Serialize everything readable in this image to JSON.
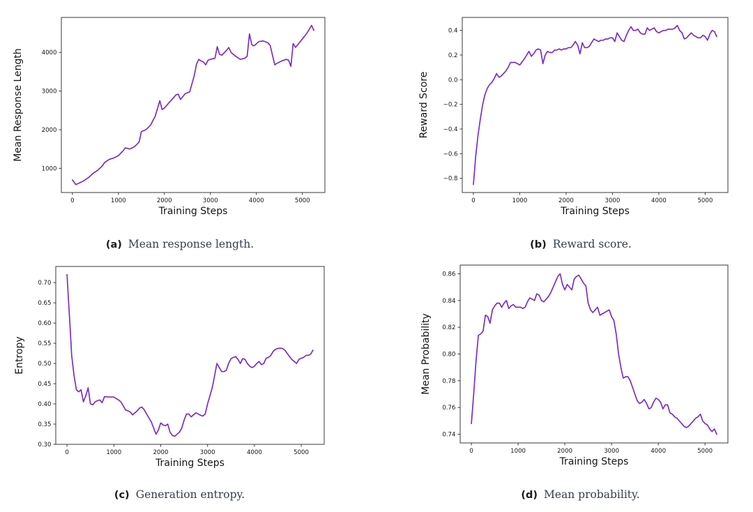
{
  "page": {
    "background": "#ffffff"
  },
  "chart_data": [
    {
      "id": "a",
      "type": "line",
      "caption_marker": "(a)",
      "caption": "Mean response length.",
      "xlabel": "Training Steps",
      "ylabel": "Mean Response Length",
      "line_color": "#7b2fc4",
      "axis_color": "#3a3a3a",
      "legend": "none",
      "grid": false,
      "xlim": [
        -240,
        5490
      ],
      "ylim": [
        374,
        4906
      ],
      "xticks": [
        0,
        1000,
        2000,
        3000,
        4000,
        5000
      ],
      "xtick_labels": [
        "0",
        "1000",
        "2000",
        "3000",
        "4000",
        "5000"
      ],
      "yticks": [
        1000,
        2000,
        3000,
        4000
      ],
      "ytick_labels": [
        "1000",
        "2000",
        "3000",
        "4000"
      ],
      "x": [
        0,
        75,
        150,
        250,
        350,
        450,
        550,
        650,
        700,
        800,
        900,
        1000,
        1100,
        1150,
        1250,
        1350,
        1450,
        1500,
        1600,
        1700,
        1800,
        1900,
        1950,
        2000,
        2100,
        2200,
        2250,
        2300,
        2350,
        2450,
        2550,
        2650,
        2700,
        2750,
        2800,
        2850,
        2900,
        2950,
        3000,
        3100,
        3150,
        3200,
        3250,
        3350,
        3400,
        3450,
        3550,
        3650,
        3750,
        3800,
        3850,
        3900,
        3950,
        4050,
        4150,
        4250,
        4300,
        4400,
        4450,
        4550,
        4650,
        4700,
        4750,
        4800,
        4850,
        4900,
        5000,
        5100,
        5200,
        5250
      ],
      "y": [
        700,
        580,
        620,
        680,
        760,
        870,
        950,
        1060,
        1150,
        1230,
        1270,
        1330,
        1450,
        1530,
        1500,
        1560,
        1680,
        1950,
        2000,
        2120,
        2350,
        2750,
        2520,
        2560,
        2700,
        2830,
        2900,
        2920,
        2780,
        2930,
        2980,
        3400,
        3700,
        3820,
        3780,
        3750,
        3680,
        3800,
        3820,
        3850,
        4150,
        3950,
        3930,
        4050,
        4130,
        4000,
        3900,
        3820,
        3850,
        3900,
        4480,
        4200,
        4170,
        4280,
        4300,
        4250,
        4180,
        3680,
        3720,
        3780,
        3820,
        3800,
        3640,
        4230,
        4130,
        4200,
        4350,
        4500,
        4700,
        4570
      ]
    },
    {
      "id": "b",
      "type": "line",
      "caption_marker": "(b)",
      "caption": "Reward score.",
      "xlabel": "Training Steps",
      "ylabel": "Reward Score",
      "line_color": "#7b2fc4",
      "axis_color": "#3a3a3a",
      "legend": "none",
      "grid": false,
      "xlim": [
        -240,
        5490
      ],
      "ylim": [
        -0.915,
        0.505
      ],
      "xticks": [
        0,
        1000,
        2000,
        3000,
        4000,
        5000
      ],
      "xtick_labels": [
        "0",
        "1000",
        "2000",
        "3000",
        "4000",
        "5000"
      ],
      "yticks": [
        0.4,
        0.2,
        0.0,
        -0.2,
        -0.4,
        -0.6,
        -0.8
      ],
      "ytick_labels": [
        "0.4",
        "0.2",
        "0.0",
        "−0.2",
        "−0.4",
        "−0.6",
        "−0.8"
      ],
      "x": [
        0,
        50,
        100,
        150,
        200,
        250,
        300,
        350,
        400,
        450,
        500,
        550,
        600,
        650,
        700,
        750,
        800,
        850,
        900,
        950,
        1000,
        1100,
        1150,
        1200,
        1250,
        1300,
        1350,
        1400,
        1450,
        1500,
        1550,
        1600,
        1650,
        1700,
        1750,
        1800,
        1850,
        1900,
        1950,
        2000,
        2050,
        2100,
        2150,
        2200,
        2250,
        2300,
        2350,
        2400,
        2450,
        2500,
        2550,
        2600,
        2650,
        2700,
        2750,
        2800,
        2850,
        2900,
        2950,
        3000,
        3050,
        3100,
        3150,
        3200,
        3250,
        3300,
        3350,
        3400,
        3450,
        3500,
        3550,
        3600,
        3650,
        3700,
        3750,
        3800,
        3850,
        3900,
        3950,
        4000,
        4050,
        4100,
        4150,
        4200,
        4250,
        4300,
        4350,
        4400,
        4450,
        4500,
        4550,
        4600,
        4650,
        4700,
        4750,
        4800,
        4850,
        4900,
        4950,
        5000,
        5050,
        5100,
        5150,
        5200,
        5250
      ],
      "y": [
        -0.85,
        -0.62,
        -0.45,
        -0.32,
        -0.2,
        -0.12,
        -0.07,
        -0.04,
        -0.02,
        0.01,
        0.05,
        0.02,
        0.03,
        0.05,
        0.07,
        0.1,
        0.14,
        0.14,
        0.14,
        0.13,
        0.12,
        0.17,
        0.2,
        0.23,
        0.19,
        0.21,
        0.24,
        0.25,
        0.24,
        0.13,
        0.2,
        0.23,
        0.22,
        0.22,
        0.24,
        0.24,
        0.25,
        0.24,
        0.25,
        0.25,
        0.26,
        0.26,
        0.28,
        0.31,
        0.28,
        0.21,
        0.3,
        0.26,
        0.26,
        0.27,
        0.3,
        0.33,
        0.32,
        0.31,
        0.32,
        0.32,
        0.33,
        0.33,
        0.34,
        0.34,
        0.31,
        0.38,
        0.35,
        0.32,
        0.31,
        0.36,
        0.4,
        0.43,
        0.4,
        0.4,
        0.41,
        0.38,
        0.37,
        0.37,
        0.42,
        0.4,
        0.41,
        0.42,
        0.39,
        0.38,
        0.39,
        0.4,
        0.4,
        0.41,
        0.41,
        0.41,
        0.42,
        0.44,
        0.4,
        0.38,
        0.33,
        0.34,
        0.36,
        0.38,
        0.36,
        0.35,
        0.34,
        0.34,
        0.36,
        0.35,
        0.32,
        0.37,
        0.4,
        0.39,
        0.35
      ]
    },
    {
      "id": "c",
      "type": "line",
      "caption_marker": "(c)",
      "caption": "Generation entropy.",
      "xlabel": "Training Steps",
      "ylabel": "Entropy",
      "line_color": "#7b2fc4",
      "axis_color": "#3a3a3a",
      "legend": "none",
      "grid": false,
      "xlim": [
        -240,
        5490
      ],
      "ylim": [
        0.3,
        0.74
      ],
      "xticks": [
        0,
        1000,
        2000,
        3000,
        4000,
        5000
      ],
      "xtick_labels": [
        "0",
        "1000",
        "2000",
        "3000",
        "4000",
        "5000"
      ],
      "yticks": [
        0.7,
        0.65,
        0.6,
        0.55,
        0.5,
        0.45,
        0.4,
        0.35,
        0.3
      ],
      "ytick_labels": [
        "0.70",
        "0.65",
        "0.60",
        "0.55",
        "0.50",
        "0.45",
        "0.40",
        "0.35",
        "0.30"
      ],
      "x": [
        0,
        30,
        60,
        100,
        150,
        200,
        250,
        300,
        350,
        400,
        450,
        500,
        550,
        600,
        650,
        700,
        750,
        800,
        900,
        1000,
        1050,
        1100,
        1150,
        1200,
        1250,
        1300,
        1350,
        1400,
        1450,
        1500,
        1550,
        1600,
        1650,
        1700,
        1750,
        1800,
        1850,
        1900,
        1950,
        2000,
        2050,
        2100,
        2150,
        2200,
        2250,
        2300,
        2350,
        2400,
        2450,
        2500,
        2550,
        2600,
        2650,
        2700,
        2750,
        2800,
        2850,
        2900,
        2950,
        3000,
        3050,
        3100,
        3150,
        3200,
        3250,
        3300,
        3350,
        3400,
        3450,
        3500,
        3550,
        3600,
        3650,
        3700,
        3750,
        3800,
        3850,
        3900,
        3950,
        4000,
        4050,
        4100,
        4150,
        4200,
        4250,
        4300,
        4350,
        4400,
        4450,
        4500,
        4550,
        4600,
        4650,
        4700,
        4750,
        4800,
        4850,
        4900,
        4950,
        5000,
        5050,
        5100,
        5150,
        5200,
        5250
      ],
      "y": [
        0.72,
        0.66,
        0.6,
        0.52,
        0.47,
        0.435,
        0.43,
        0.435,
        0.405,
        0.42,
        0.44,
        0.4,
        0.398,
        0.405,
        0.408,
        0.41,
        0.403,
        0.418,
        0.417,
        0.417,
        0.413,
        0.41,
        0.405,
        0.395,
        0.385,
        0.383,
        0.38,
        0.373,
        0.378,
        0.383,
        0.39,
        0.392,
        0.385,
        0.375,
        0.365,
        0.355,
        0.34,
        0.325,
        0.335,
        0.353,
        0.348,
        0.346,
        0.35,
        0.33,
        0.322,
        0.32,
        0.325,
        0.33,
        0.34,
        0.36,
        0.375,
        0.375,
        0.368,
        0.373,
        0.378,
        0.375,
        0.372,
        0.37,
        0.375,
        0.4,
        0.42,
        0.44,
        0.47,
        0.5,
        0.49,
        0.48,
        0.48,
        0.483,
        0.5,
        0.512,
        0.515,
        0.517,
        0.51,
        0.5,
        0.512,
        0.51,
        0.5,
        0.493,
        0.49,
        0.493,
        0.5,
        0.505,
        0.497,
        0.5,
        0.513,
        0.515,
        0.52,
        0.53,
        0.535,
        0.537,
        0.538,
        0.537,
        0.533,
        0.525,
        0.517,
        0.51,
        0.505,
        0.5,
        0.51,
        0.513,
        0.515,
        0.52,
        0.52,
        0.523,
        0.533
      ]
    },
    {
      "id": "d",
      "type": "line",
      "caption_marker": "(d)",
      "caption": "Mean probability.",
      "xlabel": "Training Steps",
      "ylabel": "Mean Probability",
      "line_color": "#7b2fc4",
      "axis_color": "#3a3a3a",
      "legend": "none",
      "grid": false,
      "xlim": [
        -240,
        5490
      ],
      "ylim": [
        0.7335,
        0.8665
      ],
      "xticks": [
        0,
        1000,
        2000,
        3000,
        4000,
        5000
      ],
      "xtick_labels": [
        "0",
        "1000",
        "2000",
        "3000",
        "4000",
        "5000"
      ],
      "yticks": [
        0.86,
        0.84,
        0.82,
        0.8,
        0.78,
        0.76,
        0.74
      ],
      "ytick_labels": [
        "0.86",
        "0.84",
        "0.82",
        "0.80",
        "0.78",
        "0.76",
        "0.74"
      ],
      "x": [
        0,
        50,
        100,
        150,
        200,
        250,
        300,
        350,
        400,
        450,
        500,
        550,
        600,
        650,
        700,
        750,
        800,
        850,
        900,
        950,
        1000,
        1050,
        1100,
        1150,
        1200,
        1250,
        1300,
        1350,
        1400,
        1450,
        1500,
        1550,
        1600,
        1650,
        1700,
        1750,
        1800,
        1850,
        1900,
        1950,
        2000,
        2050,
        2100,
        2150,
        2200,
        2250,
        2300,
        2350,
        2400,
        2450,
        2500,
        2550,
        2600,
        2650,
        2700,
        2750,
        2800,
        2850,
        2900,
        2950,
        3000,
        3050,
        3100,
        3150,
        3200,
        3250,
        3300,
        3350,
        3400,
        3450,
        3500,
        3550,
        3600,
        3650,
        3700,
        3750,
        3800,
        3850,
        3900,
        3950,
        4000,
        4050,
        4100,
        4150,
        4200,
        4250,
        4300,
        4350,
        4400,
        4450,
        4500,
        4550,
        4600,
        4650,
        4700,
        4750,
        4800,
        4850,
        4900,
        4950,
        5000,
        5050,
        5100,
        5150,
        5200,
        5250
      ],
      "y": [
        0.748,
        0.77,
        0.795,
        0.814,
        0.815,
        0.817,
        0.829,
        0.828,
        0.823,
        0.833,
        0.836,
        0.838,
        0.838,
        0.835,
        0.838,
        0.84,
        0.834,
        0.836,
        0.837,
        0.835,
        0.835,
        0.835,
        0.834,
        0.835,
        0.839,
        0.842,
        0.841,
        0.84,
        0.845,
        0.844,
        0.84,
        0.839,
        0.841,
        0.843,
        0.846,
        0.85,
        0.854,
        0.858,
        0.86,
        0.852,
        0.848,
        0.852,
        0.85,
        0.848,
        0.856,
        0.858,
        0.859,
        0.856,
        0.853,
        0.851,
        0.838,
        0.833,
        0.831,
        0.833,
        0.835,
        0.829,
        0.83,
        0.831,
        0.832,
        0.833,
        0.828,
        0.825,
        0.815,
        0.8,
        0.79,
        0.782,
        0.783,
        0.783,
        0.78,
        0.775,
        0.77,
        0.765,
        0.763,
        0.764,
        0.766,
        0.763,
        0.759,
        0.76,
        0.764,
        0.767,
        0.766,
        0.764,
        0.759,
        0.762,
        0.762,
        0.756,
        0.755,
        0.753,
        0.752,
        0.75,
        0.748,
        0.746,
        0.745,
        0.746,
        0.748,
        0.75,
        0.752,
        0.753,
        0.755,
        0.75,
        0.748,
        0.747,
        0.744,
        0.742,
        0.744,
        0.74
      ]
    }
  ]
}
